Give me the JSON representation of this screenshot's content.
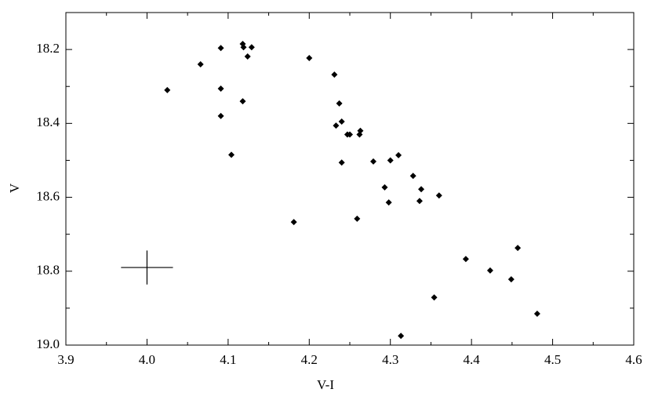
{
  "chart_data": {
    "type": "scatter",
    "x_label": "V-I",
    "y_label": "V",
    "x": [
      4.025,
      4.066,
      4.091,
      4.091,
      4.091,
      4.104,
      4.118,
      4.119,
      4.124,
      4.129,
      4.118,
      4.181,
      4.2,
      4.231,
      4.233,
      4.237,
      4.24,
      4.247,
      4.25,
      4.24,
      4.263,
      4.262,
      4.259,
      4.279,
      4.293,
      4.298,
      4.3,
      4.31,
      4.328,
      4.338,
      4.336,
      4.36,
      4.354,
      4.313,
      4.393,
      4.423,
      4.449,
      4.457,
      4.481
    ],
    "values": [
      18.31,
      18.24,
      18.196,
      18.306,
      18.38,
      18.485,
      18.185,
      18.194,
      18.219,
      18.194,
      18.34,
      18.667,
      18.223,
      18.268,
      18.406,
      18.346,
      18.395,
      18.43,
      18.43,
      18.506,
      18.42,
      18.43,
      18.658,
      18.503,
      18.573,
      18.614,
      18.5,
      18.486,
      18.542,
      18.578,
      18.61,
      18.595,
      18.871,
      18.975,
      18.767,
      18.798,
      18.822,
      18.737,
      18.915
    ],
    "color": "#000000",
    "error_bar": {
      "x": 4.0,
      "y": 18.79,
      "xerr": 0.032,
      "yerr": 0.046
    },
    "xlim": [
      3.9,
      4.6
    ],
    "xticks": [
      3.9,
      {
        "value": 4,
        "label": "4.0"
      },
      4.1,
      4.2,
      4.3,
      4.4,
      4.5,
      4.6
    ],
    "ylim": [
      18.1,
      19
    ],
    "y_inverted": true,
    "yticks": [
      18.2,
      18.4,
      18.6,
      18.8,
      {
        "value": 19,
        "label": "19.0"
      }
    ],
    "y_minor_ticks": [
      18.1,
      18.3,
      18.5,
      18.7,
      18.9
    ],
    "x_minor_ticks": [
      3.95,
      4.05,
      4.15,
      4.25,
      4.35,
      4.45,
      4.55
    ]
  }
}
